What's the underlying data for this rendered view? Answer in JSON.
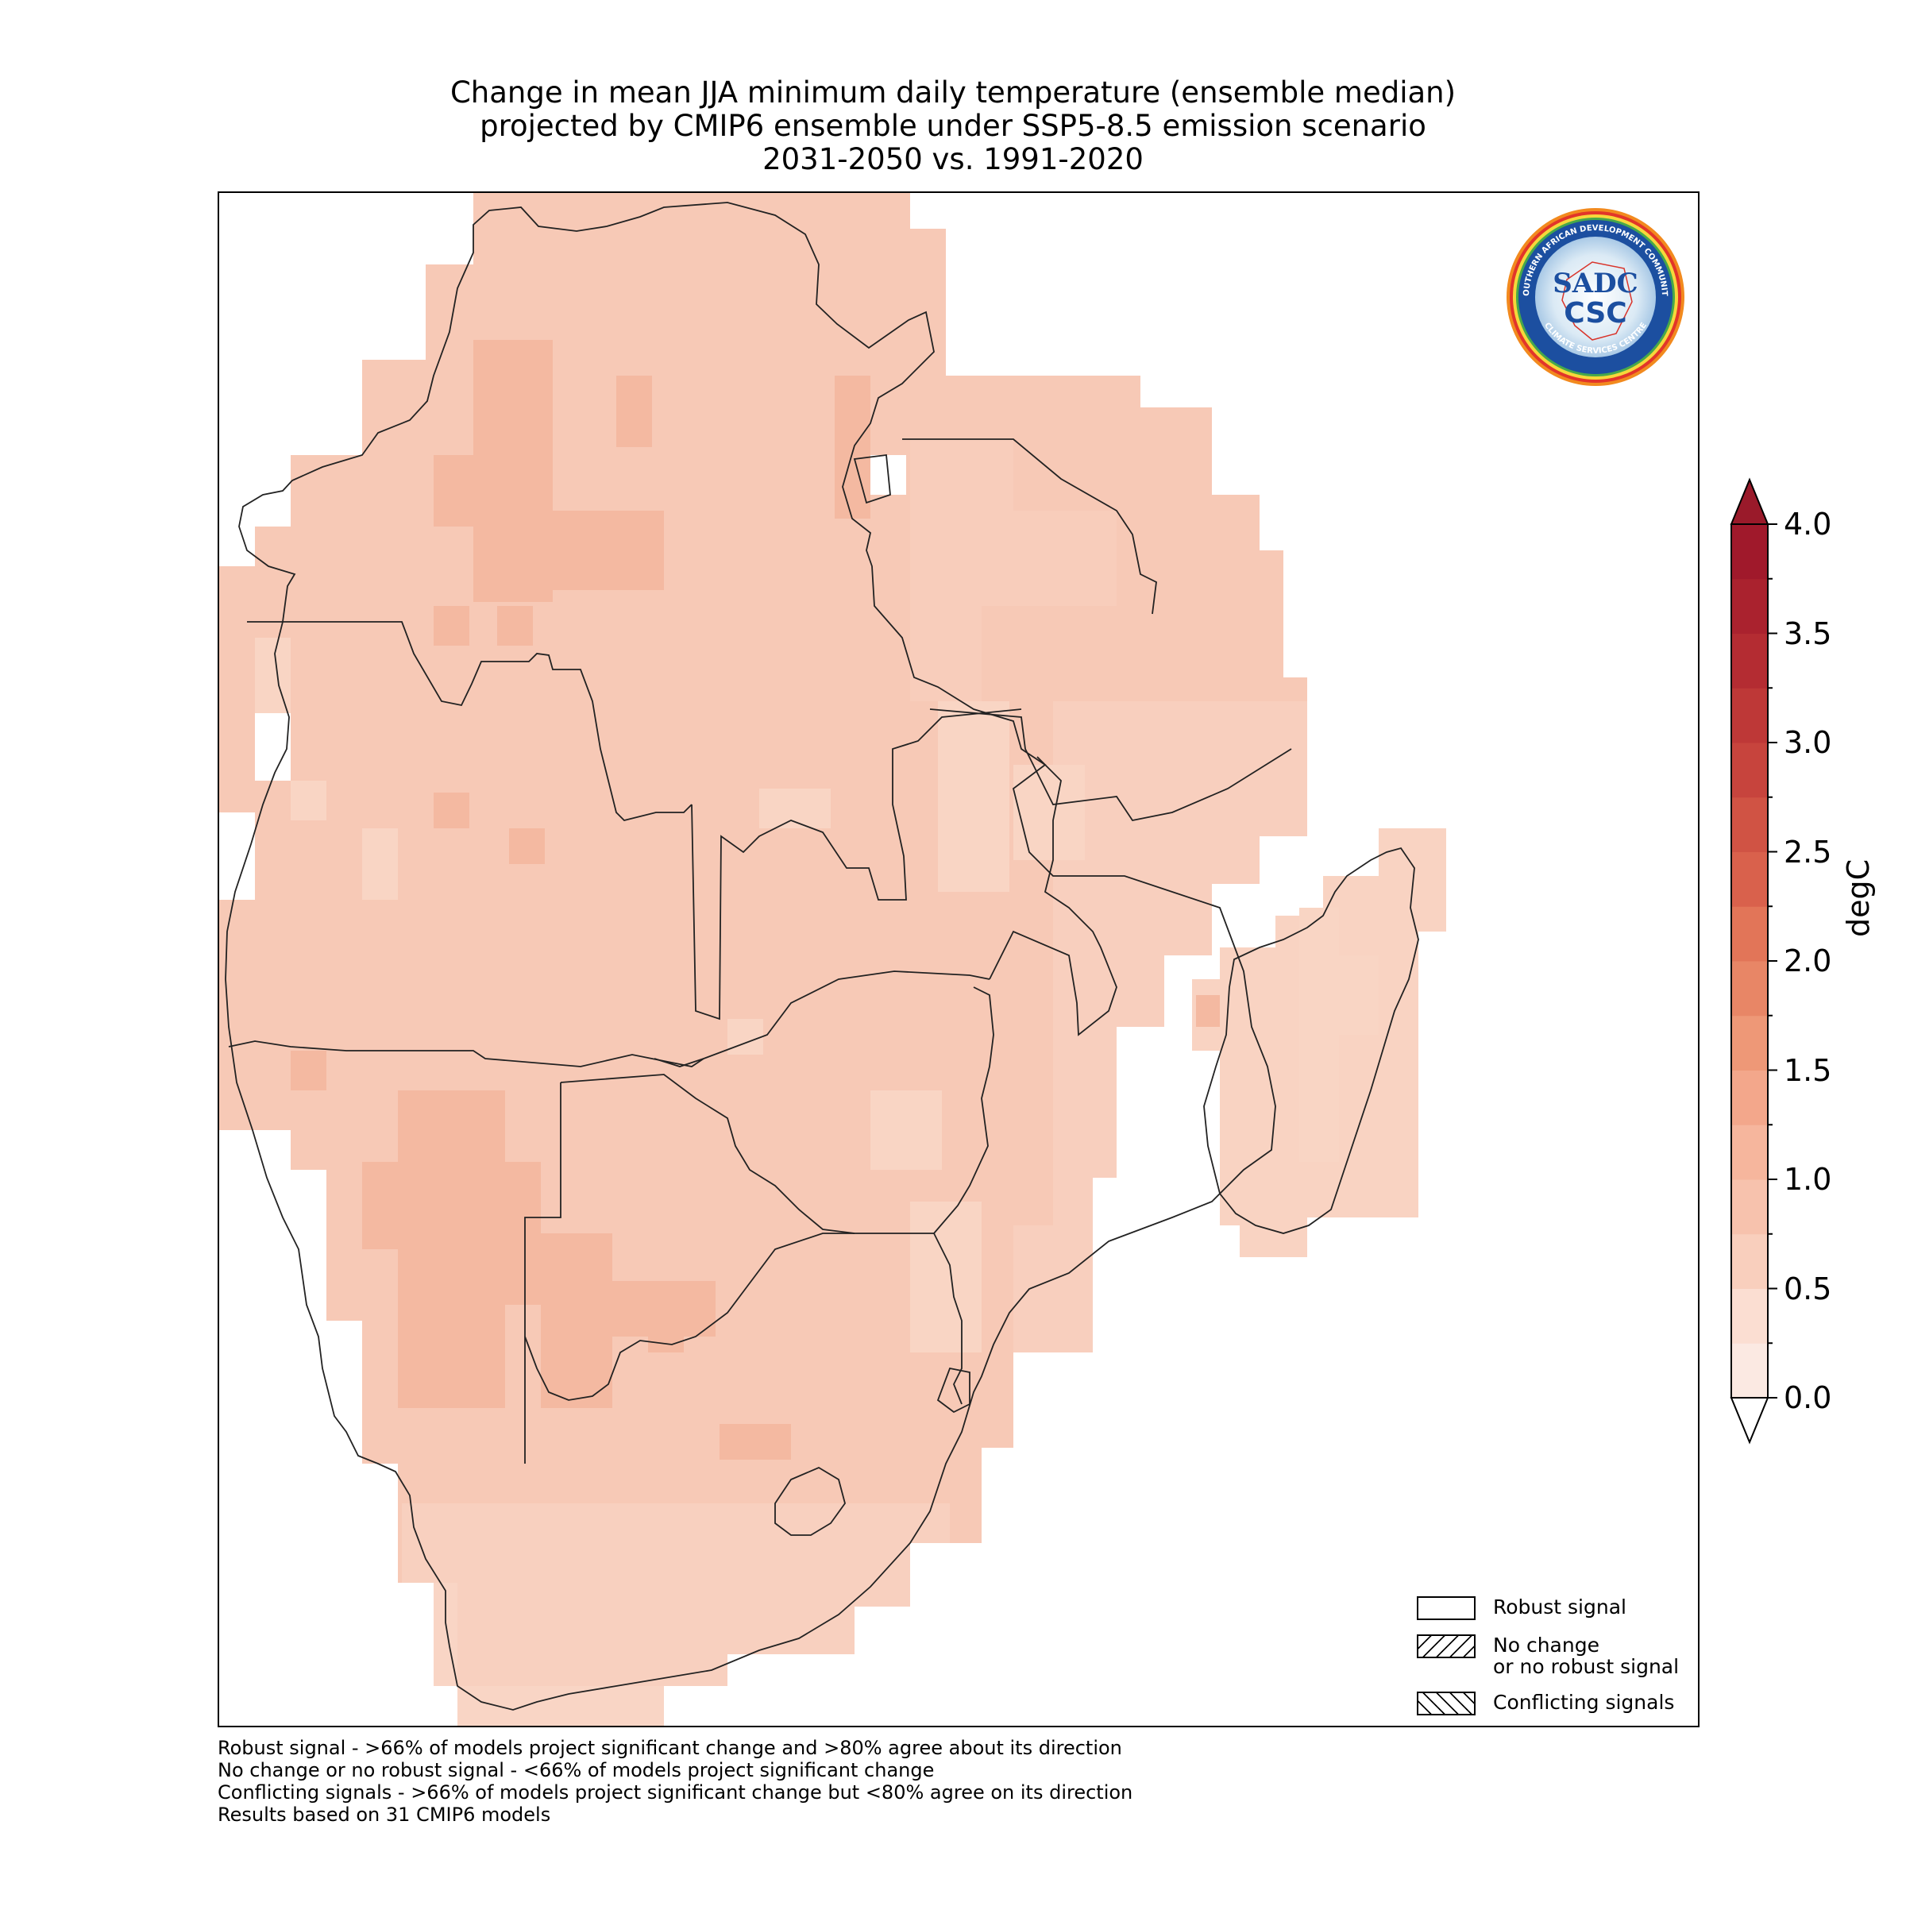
{
  "title": {
    "line1": "Change in mean JJA minimum daily temperature (ensemble median)",
    "line2": "projected by CMIP6 ensemble under SSP5-8.5 emission scenario",
    "line3": "2031-2050 vs. 1991-2020"
  },
  "logo": {
    "ring_text_top": "SOUTHERN AFRICAN DEVELOPMENT COMMUNITY",
    "ring_text_bottom": "CLIMATE SERVICES CENTRE",
    "mark_top": "SADC",
    "mark_bottom": "CSC"
  },
  "legend": {
    "robust": "Robust signal",
    "no_change_1": "No change",
    "no_change_2": "or no robust signal",
    "conflicting": "Conflicting signals"
  },
  "footnotes": [
    "Robust signal - >66% of models project significant change and >80% agree about its direction",
    "No change or no robust signal - <66% of models project significant change",
    "Conflicting signals - >66% of models project significant change but <80% agree on its direction",
    "Results based on 31 CMIP6 models"
  ],
  "colorbar": {
    "label": "degC",
    "min": 0.0,
    "max": 4.0,
    "step": 0.25,
    "tick_labels": [
      "0.0",
      "0.5",
      "1.0",
      "1.5",
      "2.0",
      "2.5",
      "3.0",
      "3.5",
      "4.0"
    ],
    "extend": "both",
    "colors": [
      "#fbe9e2",
      "#fbded2",
      "#f9cfbd",
      "#f7c2ad",
      "#f6b69d",
      "#f3a78b",
      "#ee9877",
      "#e88666",
      "#e27558",
      "#d9614c",
      "#d05344",
      "#c7443d",
      "#be3837",
      "#b42c32",
      "#aa222e",
      "#a0192b"
    ],
    "over_color": "#9a1a2a",
    "under_color": "#ffffff"
  },
  "chart_data": {
    "type": "heatmap",
    "variable": "Change in mean JJA minimum daily temperature",
    "units": "degC",
    "region": "SADC",
    "typical_range": [
      0.5,
      1.75
    ],
    "colors_that_matter": {
      "c_0_75_1_0": "#f9d9ca",
      "c_1_0_1_25": "#f7c9b6",
      "c_1_25_1_5": "#f5bea8",
      "c_1_5_1_75": "#f2b09a"
    }
  }
}
